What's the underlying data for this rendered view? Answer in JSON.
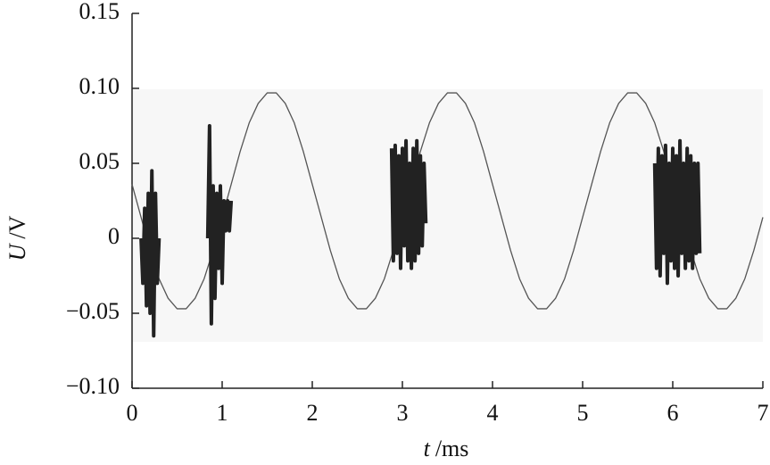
{
  "chart_data": {
    "type": "line",
    "x_label_symbol": "t",
    "x_label_unit": "/ms",
    "y_label_symbol": "U",
    "y_label_unit": "/V",
    "x": [
      0,
      0.1,
      0.2,
      0.3,
      0.4,
      0.5,
      0.6,
      0.7,
      0.8,
      0.9,
      1,
      1.1,
      1.2,
      1.3,
      1.4,
      1.5,
      1.6,
      1.7,
      1.8,
      1.9,
      2,
      2.1,
      2.2,
      2.3,
      2.4,
      2.5,
      2.6,
      2.7,
      2.8,
      2.9,
      3,
      3.1,
      3.2,
      3.3,
      3.4,
      3.5,
      3.6,
      3.7,
      3.8,
      3.9,
      4,
      4.1,
      4.2,
      4.3,
      4.4,
      4.5,
      4.6,
      4.7,
      4.8,
      4.9,
      5,
      5.1,
      5.2,
      5.3,
      5.4,
      5.5,
      5.6,
      5.7,
      5.8,
      5.9,
      6,
      6.1,
      6.2,
      6.3,
      6.4,
      6.5,
      6.6,
      6.7,
      6.8,
      6.9,
      7
    ],
    "series": [
      {
        "color": "#555555",
        "values": [
          0.036,
          0.014,
          -0.008,
          -0.027,
          -0.04,
          -0.047,
          -0.047,
          -0.04,
          -0.027,
          -0.008,
          0.014,
          0.036,
          0.058,
          0.077,
          0.09,
          0.097,
          0.097,
          0.09,
          0.077,
          0.058,
          0.036,
          0.014,
          -0.008,
          -0.027,
          -0.04,
          -0.047,
          -0.047,
          -0.04,
          -0.027,
          -0.008,
          0.014,
          0.036,
          0.058,
          0.077,
          0.09,
          0.097,
          0.097,
          0.09,
          0.077,
          0.058,
          0.036,
          0.014,
          -0.008,
          -0.027,
          -0.04,
          -0.047,
          -0.047,
          -0.04,
          -0.027,
          -0.008,
          0.014,
          0.036,
          0.058,
          0.077,
          0.09,
          0.097,
          0.097,
          0.09,
          0.077,
          0.058,
          0.036,
          0.014,
          -0.008,
          -0.027,
          -0.04,
          -0.047,
          -0.047,
          -0.04,
          -0.027,
          -0.008,
          0.014
        ]
      },
      {
        "color": "#222222",
        "x": [
          0.1,
          0.12,
          0.14,
          0.16,
          0.18,
          0.2,
          0.22,
          0.24,
          0.26,
          0.28,
          0.3
        ],
        "values": [
          0.0,
          -0.03,
          0.02,
          -0.045,
          0.03,
          -0.05,
          0.045,
          -0.065,
          0.03,
          -0.03,
          0.0
        ]
      },
      {
        "color": "#222222",
        "x": [
          0.84,
          0.86,
          0.88,
          0.9,
          0.92,
          0.94,
          0.96,
          0.98,
          1.0,
          1.02,
          1.04,
          1.06,
          1.08,
          1.1
        ],
        "values": [
          0.0,
          0.075,
          -0.057,
          0.035,
          -0.04,
          0.03,
          -0.02,
          0.035,
          -0.03,
          0.025,
          0.005,
          0.025,
          0.005,
          0.025
        ]
      },
      {
        "color": "#222222",
        "x": [
          2.88,
          2.9,
          2.92,
          2.94,
          2.96,
          2.98,
          3.0,
          3.02,
          3.04,
          3.06,
          3.08,
          3.1,
          3.12,
          3.14,
          3.16,
          3.18,
          3.2,
          3.22,
          3.24,
          3.26
        ],
        "values": [
          0.06,
          -0.015,
          0.062,
          -0.01,
          0.055,
          -0.02,
          0.06,
          -0.005,
          0.065,
          -0.015,
          0.05,
          -0.02,
          0.06,
          -0.015,
          0.065,
          -0.01,
          0.055,
          -0.005,
          0.05,
          0.01
        ]
      },
      {
        "color": "#222222",
        "x": [
          5.8,
          5.82,
          5.84,
          5.86,
          5.88,
          5.9,
          5.92,
          5.94,
          5.96,
          5.98,
          6.0,
          6.02,
          6.04,
          6.06,
          6.08,
          6.1,
          6.12,
          6.14,
          6.16,
          6.18,
          6.2,
          6.22,
          6.24,
          6.26,
          6.28,
          6.3
        ],
        "values": [
          0.05,
          -0.02,
          0.06,
          -0.025,
          0.055,
          -0.01,
          0.062,
          -0.03,
          0.05,
          -0.015,
          0.06,
          -0.02,
          0.055,
          -0.025,
          0.065,
          -0.01,
          0.05,
          -0.02,
          0.06,
          -0.015,
          0.055,
          -0.02,
          0.05,
          -0.01,
          0.05,
          -0.01
        ]
      }
    ],
    "xlim": [
      0,
      7
    ],
    "xticks": [
      0,
      1,
      2,
      3,
      4,
      5,
      6,
      7
    ],
    "ylim": [
      -0.1,
      0.15
    ],
    "yticks": [
      {
        "value": -0.1,
        "label": "−0.10"
      },
      {
        "value": -0.05,
        "label": "−0.05"
      },
      0,
      0.05,
      {
        "value": 0.1,
        "label": "0.10"
      },
      0.15
    ]
  }
}
